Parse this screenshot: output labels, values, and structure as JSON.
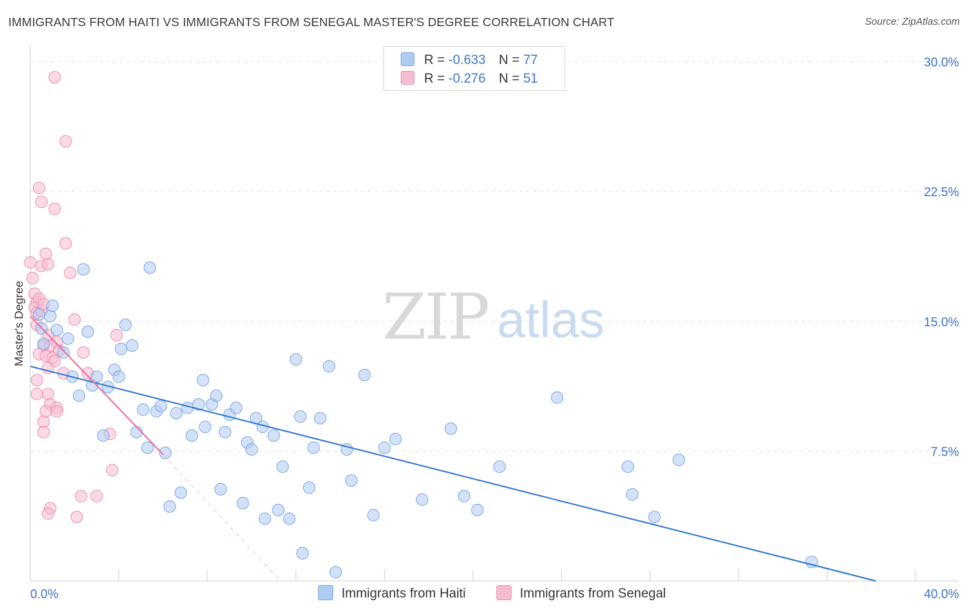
{
  "title": "IMMIGRANTS FROM HAITI VS IMMIGRANTS FROM SENEGAL MASTER'S DEGREE CORRELATION CHART",
  "source": "Source: ZipAtlas.com",
  "watermark": {
    "zip": "ZIP",
    "atlas": "atlas"
  },
  "legend": {
    "haiti": {
      "r_label": "R =",
      "r_value": "-0.633",
      "n_label": "N =",
      "n_value": "77"
    },
    "senegal": {
      "r_label": "R =",
      "r_value": "-0.276",
      "n_label": "N =",
      "n_value": "51"
    }
  },
  "colors": {
    "haiti_fill": "#aecbf2",
    "haiti_stroke": "#7aa7e3",
    "haiti_line": "#2f74d0",
    "senegal_fill": "#f7bcd0",
    "senegal_stroke": "#ea8fae",
    "senegal_line": "#e8709a",
    "grid": "#e3e3e3",
    "axis_text": "#3d74c6"
  },
  "chart_data": {
    "type": "scatter",
    "title": "IMMIGRANTS FROM HAITI VS IMMIGRANTS FROM SENEGAL MASTER'S DEGREE CORRELATION CHART",
    "xlabel": "",
    "ylabel": "Master's Degree",
    "xlim": [
      0,
      40
    ],
    "ylim": [
      0,
      30.7
    ],
    "x_tick_labels": [
      "0.0%",
      "40.0%"
    ],
    "y_ticks": [
      7.5,
      15.0,
      22.5,
      30.0
    ],
    "y_tick_labels": [
      "7.5%",
      "15.0%",
      "22.5%",
      "30.0%"
    ],
    "grid": "horizontal-dashed",
    "series": [
      {
        "name": "Immigrants from Haiti",
        "r": -0.633,
        "n": 77,
        "trend": {
          "x": [
            0.0,
            38.2
          ],
          "y": [
            12.4,
            0.0
          ]
        },
        "points": [
          [
            0.4,
            15.4
          ],
          [
            0.5,
            14.6
          ],
          [
            0.6,
            13.7
          ],
          [
            0.9,
            15.3
          ],
          [
            1.0,
            15.9
          ],
          [
            1.2,
            14.5
          ],
          [
            1.5,
            13.2
          ],
          [
            1.7,
            14.0
          ],
          [
            1.9,
            11.8
          ],
          [
            2.2,
            10.7
          ],
          [
            2.4,
            18.0
          ],
          [
            2.6,
            14.4
          ],
          [
            2.8,
            11.3
          ],
          [
            3.0,
            11.8
          ],
          [
            3.3,
            8.4
          ],
          [
            3.5,
            11.2
          ],
          [
            3.8,
            12.2
          ],
          [
            4.0,
            11.8
          ],
          [
            4.1,
            13.4
          ],
          [
            4.3,
            14.8
          ],
          [
            4.6,
            13.6
          ],
          [
            4.8,
            8.6
          ],
          [
            5.1,
            9.9
          ],
          [
            5.3,
            7.7
          ],
          [
            5.4,
            18.1
          ],
          [
            5.7,
            9.8
          ],
          [
            5.9,
            10.1
          ],
          [
            6.1,
            7.4
          ],
          [
            6.3,
            4.3
          ],
          [
            6.6,
            9.7
          ],
          [
            6.8,
            5.1
          ],
          [
            7.1,
            10.0
          ],
          [
            7.3,
            8.4
          ],
          [
            7.6,
            10.2
          ],
          [
            7.8,
            11.6
          ],
          [
            7.9,
            8.9
          ],
          [
            8.2,
            10.2
          ],
          [
            8.4,
            10.7
          ],
          [
            8.6,
            5.3
          ],
          [
            8.8,
            8.6
          ],
          [
            9.0,
            9.6
          ],
          [
            9.3,
            10.0
          ],
          [
            9.6,
            4.5
          ],
          [
            9.8,
            8.0
          ],
          [
            10.0,
            7.6
          ],
          [
            10.2,
            9.4
          ],
          [
            10.5,
            8.9
          ],
          [
            10.6,
            3.6
          ],
          [
            11.0,
            8.4
          ],
          [
            11.2,
            4.1
          ],
          [
            11.4,
            6.6
          ],
          [
            11.7,
            3.6
          ],
          [
            12.0,
            12.8
          ],
          [
            12.2,
            9.5
          ],
          [
            12.3,
            1.6
          ],
          [
            12.6,
            5.4
          ],
          [
            12.8,
            7.7
          ],
          [
            13.1,
            9.4
          ],
          [
            13.5,
            12.4
          ],
          [
            13.8,
            0.5
          ],
          [
            14.3,
            7.6
          ],
          [
            14.5,
            5.8
          ],
          [
            15.1,
            11.9
          ],
          [
            15.5,
            3.8
          ],
          [
            16.0,
            7.7
          ],
          [
            16.5,
            8.2
          ],
          [
            17.7,
            4.7
          ],
          [
            19.0,
            8.8
          ],
          [
            19.6,
            4.9
          ],
          [
            20.2,
            4.1
          ],
          [
            21.2,
            6.6
          ],
          [
            23.8,
            10.6
          ],
          [
            27.0,
            6.6
          ],
          [
            27.2,
            5.0
          ],
          [
            28.2,
            3.7
          ],
          [
            29.3,
            7.0
          ],
          [
            35.3,
            1.1
          ]
        ]
      },
      {
        "name": "Immigrants from Senegal",
        "r": -0.276,
        "n": 51,
        "trend": {
          "x": [
            0.0,
            6.0
          ],
          "y": [
            15.3,
            7.3
          ]
        },
        "trend_extension": {
          "x": [
            6.0,
            11.3
          ],
          "y": [
            7.3,
            0.0
          ]
        },
        "points": [
          [
            1.1,
            29.1
          ],
          [
            1.6,
            25.4
          ],
          [
            0.4,
            22.7
          ],
          [
            0.5,
            21.9
          ],
          [
            1.1,
            21.5
          ],
          [
            1.6,
            19.5
          ],
          [
            0.7,
            18.9
          ],
          [
            0.0,
            18.4
          ],
          [
            0.5,
            18.2
          ],
          [
            0.8,
            18.3
          ],
          [
            1.8,
            17.8
          ],
          [
            0.1,
            17.5
          ],
          [
            0.2,
            16.6
          ],
          [
            0.3,
            16.1
          ],
          [
            0.4,
            16.3
          ],
          [
            0.2,
            15.8
          ],
          [
            0.3,
            15.5
          ],
          [
            0.5,
            15.6
          ],
          [
            0.6,
            16.0
          ],
          [
            2.0,
            15.1
          ],
          [
            0.3,
            14.8
          ],
          [
            0.8,
            14.2
          ],
          [
            3.9,
            14.2
          ],
          [
            0.6,
            13.6
          ],
          [
            0.9,
            13.6
          ],
          [
            1.2,
            13.8
          ],
          [
            1.3,
            13.3
          ],
          [
            2.4,
            13.2
          ],
          [
            0.4,
            13.1
          ],
          [
            0.7,
            13.0
          ],
          [
            1.0,
            12.9
          ],
          [
            1.1,
            12.7
          ],
          [
            0.8,
            12.3
          ],
          [
            1.5,
            12.0
          ],
          [
            2.6,
            12.0
          ],
          [
            0.3,
            11.6
          ],
          [
            0.3,
            10.8
          ],
          [
            0.8,
            10.8
          ],
          [
            0.9,
            10.2
          ],
          [
            1.2,
            10.0
          ],
          [
            1.2,
            9.8
          ],
          [
            0.7,
            9.8
          ],
          [
            0.6,
            9.2
          ],
          [
            0.6,
            8.6
          ],
          [
            3.6,
            8.5
          ],
          [
            3.7,
            6.4
          ],
          [
            2.3,
            4.9
          ],
          [
            3.0,
            4.9
          ],
          [
            0.9,
            4.2
          ],
          [
            0.8,
            3.9
          ],
          [
            2.1,
            3.7
          ]
        ]
      }
    ]
  },
  "bottom_legend": {
    "haiti_label": "Immigrants from Haiti",
    "senegal_label": "Immigrants from Senegal"
  }
}
